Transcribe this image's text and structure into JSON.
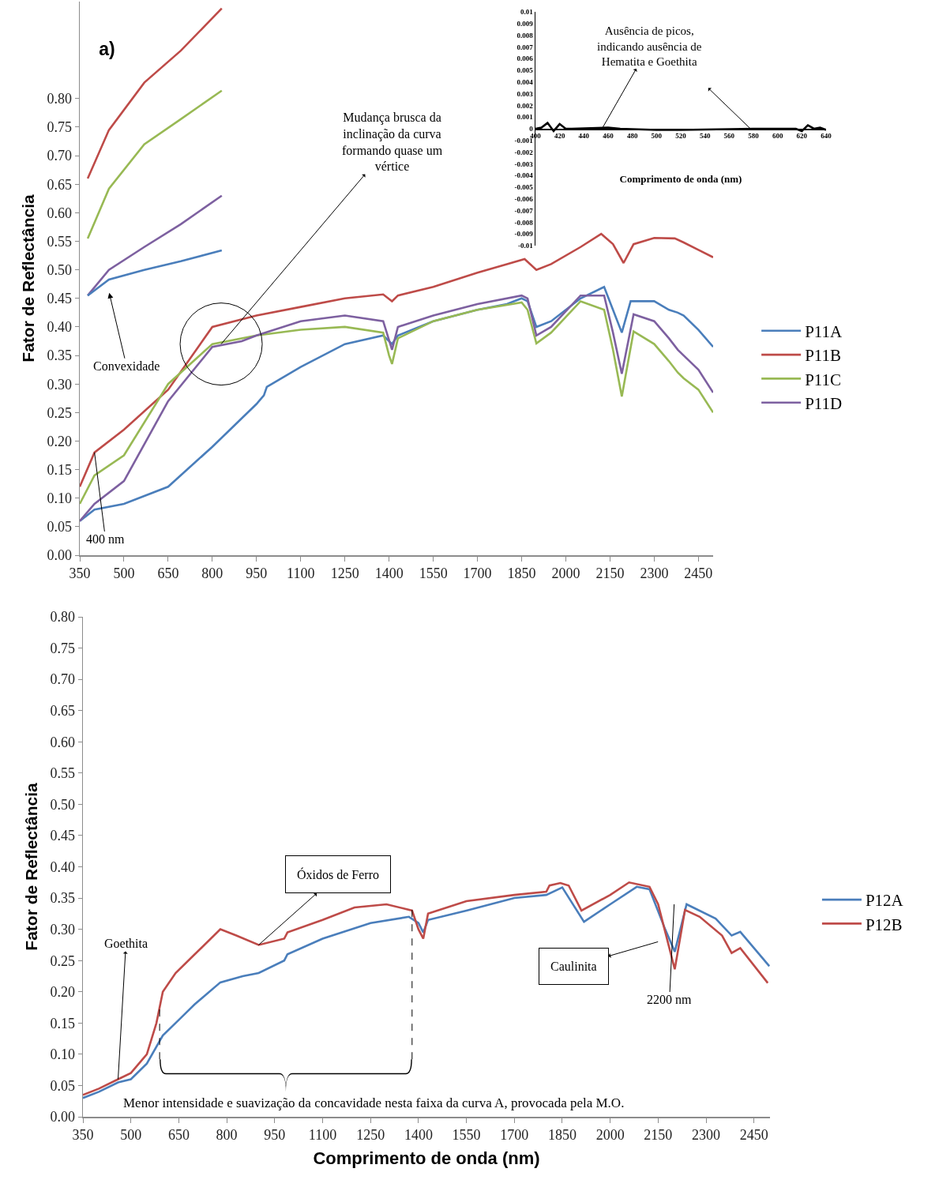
{
  "chart_data": [
    {
      "type": "line",
      "title": "a)",
      "ylabel": "Fator de Reflectância",
      "xlim": [
        350,
        2500
      ],
      "xticks": [
        350,
        500,
        650,
        800,
        950,
        1100,
        1250,
        1400,
        1550,
        1700,
        1850,
        2000,
        2150,
        2300,
        2450
      ],
      "ylim": [
        0,
        0.97
      ],
      "yticks": [
        {
          "value": 0,
          "label": "0.00"
        },
        {
          "value": 0.05,
          "label": "0.05"
        },
        {
          "value": 0.1,
          "label": "0.10"
        },
        {
          "value": 0.15,
          "label": "0.15"
        },
        {
          "value": 0.2,
          "label": "0.20"
        },
        {
          "value": 0.25,
          "label": "0.25"
        },
        {
          "value": 0.3,
          "label": "0.30"
        },
        {
          "value": 0.35,
          "label": "0.35"
        },
        {
          "value": 0.4,
          "label": "0.40"
        },
        {
          "value": 0.45,
          "label": "0.45"
        },
        {
          "value": 0.5,
          "label": "0.50"
        },
        {
          "value": 0.55,
          "label": "0.55"
        },
        {
          "value": 0.6,
          "label": "0.60"
        },
        {
          "value": 0.65,
          "label": "0.65"
        },
        {
          "value": 0.7,
          "label": "0.70"
        },
        {
          "value": 0.75,
          "label": "0.75"
        },
        {
          "value": 0.8,
          "label": "0.80"
        }
      ],
      "grid": false,
      "legend": "right",
      "series": [
        {
          "name": "P11A",
          "color": "#4a7ebb",
          "x": [
            350,
            400,
            500,
            650,
            800,
            950,
            975,
            985,
            1100,
            1250,
            1380,
            1410,
            1430,
            1550,
            1700,
            1800,
            1850,
            1870,
            1900,
            1950,
            2050,
            2130,
            2160,
            2190,
            2220,
            2300,
            2350,
            2380,
            2400,
            2450,
            2500
          ],
          "values": [
            0.06,
            0.08,
            0.09,
            0.12,
            0.19,
            0.265,
            0.28,
            0.295,
            0.33,
            0.37,
            0.385,
            0.37,
            0.385,
            0.41,
            0.43,
            0.44,
            0.45,
            0.445,
            0.4,
            0.41,
            0.45,
            0.47,
            0.43,
            0.39,
            0.445,
            0.445,
            0.43,
            0.425,
            0.42,
            0.395,
            0.365
          ]
        },
        {
          "name": "P11B",
          "color": "#be4b48",
          "x": [
            350,
            400,
            500,
            650,
            800,
            950,
            1100,
            1250,
            1380,
            1410,
            1430,
            1550,
            1700,
            1800,
            1860,
            1900,
            1950,
            2050,
            2120,
            2160,
            2196,
            2230,
            2300,
            2370,
            2400,
            2450,
            2500
          ],
          "values": [
            0.12,
            0.18,
            0.22,
            0.29,
            0.4,
            0.42,
            0.435,
            0.45,
            0.457,
            0.445,
            0.455,
            0.47,
            0.495,
            0.51,
            0.519,
            0.5,
            0.51,
            0.54,
            0.563,
            0.545,
            0.512,
            0.545,
            0.556,
            0.555,
            0.548,
            0.535,
            0.522
          ]
        },
        {
          "name": "P11C",
          "color": "#98b954",
          "x": [
            350,
            400,
            500,
            650,
            800,
            950,
            1100,
            1250,
            1380,
            1400,
            1410,
            1430,
            1550,
            1700,
            1850,
            1870,
            1900,
            1950,
            2050,
            2130,
            2160,
            2190,
            2230,
            2300,
            2350,
            2380,
            2400,
            2450,
            2500
          ],
          "values": [
            0.09,
            0.14,
            0.175,
            0.3,
            0.37,
            0.385,
            0.395,
            0.4,
            0.39,
            0.35,
            0.335,
            0.38,
            0.41,
            0.43,
            0.443,
            0.43,
            0.371,
            0.39,
            0.445,
            0.43,
            0.36,
            0.278,
            0.392,
            0.37,
            0.34,
            0.32,
            0.31,
            0.29,
            0.25
          ]
        },
        {
          "name": "P11D",
          "color": "#7d60a0",
          "x": [
            350,
            400,
            500,
            650,
            800,
            900,
            950,
            1100,
            1250,
            1380,
            1410,
            1430,
            1550,
            1700,
            1850,
            1870,
            1900,
            1950,
            2050,
            2130,
            2160,
            2190,
            2230,
            2300,
            2350,
            2380,
            2400,
            2450,
            2500
          ],
          "values": [
            0.06,
            0.09,
            0.13,
            0.27,
            0.365,
            0.375,
            0.385,
            0.41,
            0.42,
            0.41,
            0.36,
            0.4,
            0.42,
            0.44,
            0.455,
            0.45,
            0.385,
            0.4,
            0.455,
            0.455,
            0.39,
            0.318,
            0.422,
            0.41,
            0.38,
            0.36,
            0.35,
            0.325,
            0.285
          ]
        },
        {
          "color": "#be4b48",
          "x": [
            377,
            449,
            569,
            693,
            832
          ],
          "values": [
            0.66,
            0.745,
            0.828,
            0.884,
            0.958
          ]
        },
        {
          "color": "#98b954",
          "x": [
            377,
            449,
            569,
            693,
            832
          ],
          "values": [
            0.555,
            0.642,
            0.72,
            0.764,
            0.814
          ]
        },
        {
          "color": "#7d60a0",
          "x": [
            377,
            449,
            569,
            693,
            832
          ],
          "values": [
            0.455,
            0.5,
            0.54,
            0.58,
            0.63
          ]
        },
        {
          "color": "#4a7ebb",
          "x": [
            377,
            449,
            569,
            693,
            832
          ],
          "values": [
            0.455,
            0.483,
            0.5,
            0.515,
            0.534
          ]
        }
      ],
      "annotations": [
        "Convexidade",
        {
          "text": "400 nm",
          "x": 400,
          "y": 0.18
        },
        {
          "text": "Mudança brusca da inclinação da curva formando quase um vértice",
          "x": 830,
          "y": 0.37
        }
      ]
    },
    {
      "type": "line",
      "xlabel": "Comprimento de onda (nm)",
      "xlim": [
        400,
        640
      ],
      "xticks": [
        400,
        420,
        440,
        460,
        480,
        500,
        520,
        540,
        560,
        580,
        600,
        620,
        640
      ],
      "ylim": [
        -0.01,
        0.01
      ],
      "yticks": [
        -0.01,
        -0.009,
        -0.008,
        -0.007,
        -0.006,
        -0.005,
        -0.004,
        -0.003,
        -0.002,
        -0.001,
        0,
        0.001,
        0.002,
        0.003,
        0.004,
        0.005,
        0.006,
        0.007,
        0.008,
        0.009,
        0.01
      ],
      "series": [
        {
          "color": "#000000",
          "x": [
            400,
            405,
            410,
            415,
            420,
            425,
            430,
            460,
            470,
            500,
            520,
            580,
            615,
            620,
            625,
            630,
            635,
            640
          ],
          "values": [
            0,
            0.0001,
            0.0005,
            -0.0002,
            0.0004,
            0,
            0,
            0.0001,
            0,
            -0.0001,
            -0.0001,
            0,
            0,
            -0.0002,
            0.0003,
            0,
            0.0001,
            -0.0001
          ]
        }
      ],
      "annotations": [
        "Ausência de picos, indicando ausência de Hematita e Goethita"
      ]
    },
    {
      "type": "line",
      "xlabel": "Comprimento de onda (nm)",
      "ylabel": "Fator de Reflectância",
      "xlim": [
        350,
        2500
      ],
      "xticks": [
        350,
        500,
        650,
        800,
        950,
        1100,
        1250,
        1400,
        1550,
        1700,
        1850,
        2000,
        2150,
        2300,
        2450
      ],
      "ylim": [
        0,
        0.8
      ],
      "yticks": [
        {
          "value": 0,
          "label": "0.00"
        },
        {
          "value": 0.05,
          "label": "0.05"
        },
        {
          "value": 0.1,
          "label": "0.10"
        },
        {
          "value": 0.15,
          "label": "0.15"
        },
        {
          "value": 0.2,
          "label": "0.20"
        },
        {
          "value": 0.25,
          "label": "0.25"
        },
        {
          "value": 0.3,
          "label": "0.30"
        },
        {
          "value": 0.35,
          "label": "0.35"
        },
        {
          "value": 0.4,
          "label": "0.40"
        },
        {
          "value": 0.45,
          "label": "0.45"
        },
        {
          "value": 0.5,
          "label": "0.50"
        },
        {
          "value": 0.55,
          "label": "0.55"
        },
        {
          "value": 0.6,
          "label": "0.60"
        },
        {
          "value": 0.65,
          "label": "0.65"
        },
        {
          "value": 0.7,
          "label": "0.70"
        },
        {
          "value": 0.75,
          "label": "0.75"
        },
        {
          "value": 0.8,
          "label": "0.80"
        }
      ],
      "grid": false,
      "legend": "right",
      "series": [
        {
          "name": "P12A",
          "color": "#4a7ebb",
          "x": [
            350,
            400,
            460,
            500,
            550,
            600,
            650,
            700,
            780,
            850,
            900,
            980,
            990,
            1100,
            1250,
            1370,
            1400,
            1415,
            1430,
            1550,
            1700,
            1800,
            1850,
            1918,
            2000,
            2083,
            2123,
            2172,
            2202,
            2239,
            2330,
            2380,
            2407,
            2498
          ],
          "values": [
            0.03,
            0.04,
            0.055,
            0.06,
            0.085,
            0.13,
            0.155,
            0.18,
            0.215,
            0.225,
            0.23,
            0.25,
            0.26,
            0.285,
            0.31,
            0.32,
            0.31,
            0.295,
            0.315,
            0.33,
            0.35,
            0.355,
            0.367,
            0.312,
            0.34,
            0.368,
            0.364,
            0.3,
            0.264,
            0.34,
            0.317,
            0.29,
            0.296,
            0.241
          ]
        },
        {
          "name": "P12B",
          "color": "#be4b48",
          "x": [
            350,
            400,
            460,
            500,
            550,
            580,
            600,
            640,
            700,
            780,
            830,
            900,
            980,
            990,
            1100,
            1200,
            1300,
            1380,
            1400,
            1415,
            1430,
            1550,
            1700,
            1800,
            1810,
            1844,
            1870,
            1910,
            2000,
            2059,
            2123,
            2150,
            2170,
            2202,
            2234,
            2280,
            2350,
            2380,
            2407,
            2493
          ],
          "values": [
            0.035,
            0.045,
            0.06,
            0.07,
            0.1,
            0.15,
            0.2,
            0.23,
            0.26,
            0.3,
            0.29,
            0.275,
            0.285,
            0.295,
            0.315,
            0.335,
            0.34,
            0.33,
            0.3,
            0.285,
            0.325,
            0.345,
            0.355,
            0.36,
            0.37,
            0.374,
            0.37,
            0.33,
            0.355,
            0.375,
            0.368,
            0.34,
            0.3,
            0.236,
            0.331,
            0.32,
            0.29,
            0.262,
            0.27,
            0.214
          ]
        }
      ],
      "ref_lines": [
        {
          "axis": "x",
          "value": 590,
          "line_style": "dashed"
        },
        {
          "axis": "x",
          "value": 1380,
          "line_style": "dashed"
        }
      ],
      "annotations": [
        {
          "text": "Goethita",
          "x": 460,
          "y": 0.06
        },
        {
          "text": "Óxidos de Ferro",
          "x": 900,
          "y": 0.275
        },
        "Caulinita",
        "2200 nm",
        "Menor intensidade e suavização da concavidade nesta faixa da curva A, provocada pela M.O."
      ]
    }
  ]
}
